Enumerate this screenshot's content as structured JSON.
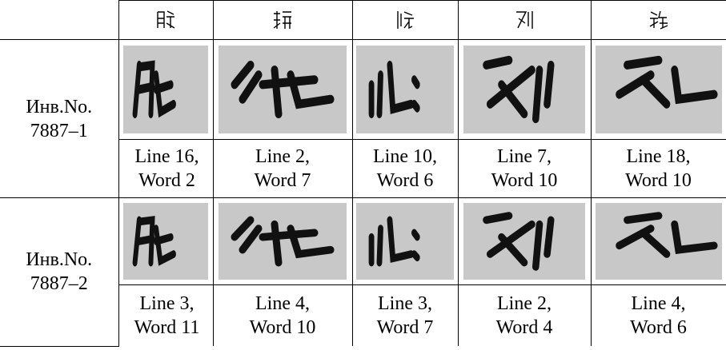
{
  "table": {
    "groups": [
      {
        "label": "Инв.No. 7887–1",
        "captions": [
          "Line 16, Word 2",
          "Line 2, Word 7",
          "Line 10, Word 6",
          "Line 7, Word 10",
          "Line 18, Word 10"
        ]
      },
      {
        "label": "Инв.No. 7887–2",
        "captions": [
          "Line 3, Word 11",
          "Line 4, Word 10",
          "Line 3, Word 7",
          "Line 2, Word 4",
          "Line 4, Word 6"
        ]
      }
    ]
  }
}
